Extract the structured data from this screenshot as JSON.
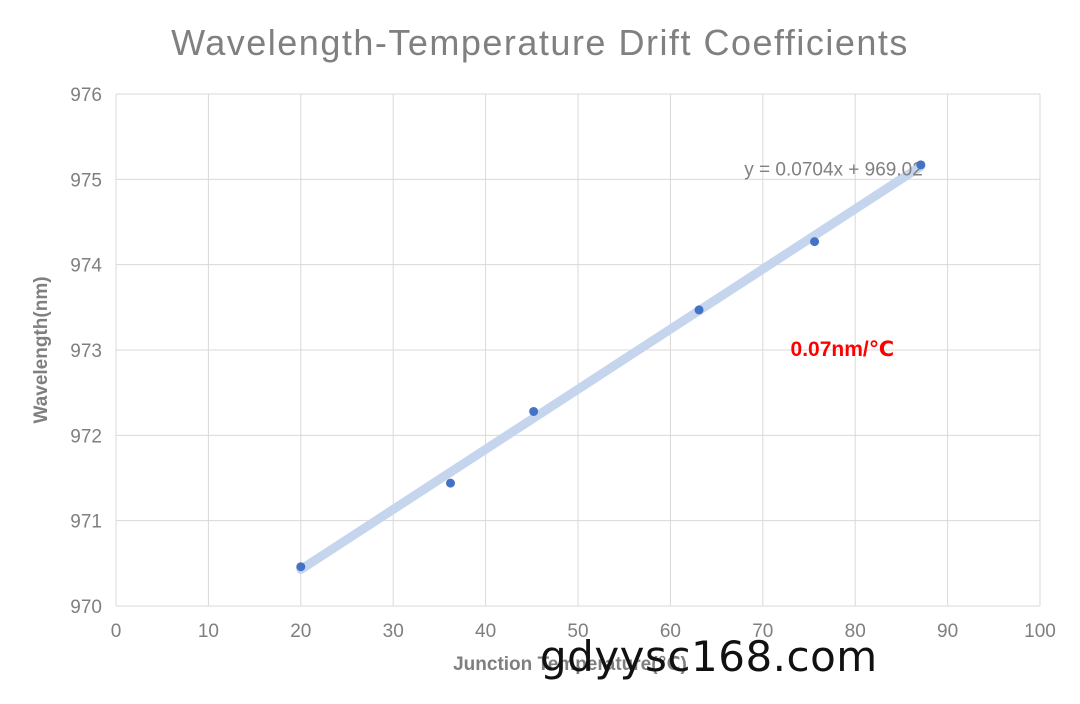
{
  "chart_data": {
    "type": "scatter",
    "title": "Wavelength-Temperature Drift Coefficients",
    "xlabel": "Junction Temperature(℃)",
    "ylabel": "Wavelength(nm)",
    "xlim": [
      0,
      100
    ],
    "ylim": [
      970,
      976
    ],
    "xticks": [
      0,
      10,
      20,
      30,
      40,
      50,
      60,
      70,
      80,
      90,
      100
    ],
    "yticks": [
      970,
      971,
      972,
      973,
      974,
      975,
      976
    ],
    "grid": true,
    "legend": "none",
    "series": [
      {
        "x": [
          20,
          36.2,
          45.2,
          63.1,
          75.6,
          87.1
        ],
        "y": [
          970.46,
          971.44,
          972.28,
          973.47,
          974.27,
          975.17
        ],
        "color": "#4472c4"
      }
    ],
    "trendline": {
      "type": "linear",
      "slope": 0.0704,
      "intercept": 969.02,
      "x_range": [
        20,
        87.1
      ],
      "label": "y = 0.0704x + 969.02",
      "color": "#c5d5ee"
    },
    "annotations": [
      {
        "text": "0.07nm/℃",
        "x": 73,
        "y": 972.93,
        "color": "#ff0000"
      }
    ]
  },
  "watermark": {
    "text": "gdyysc168.com"
  }
}
